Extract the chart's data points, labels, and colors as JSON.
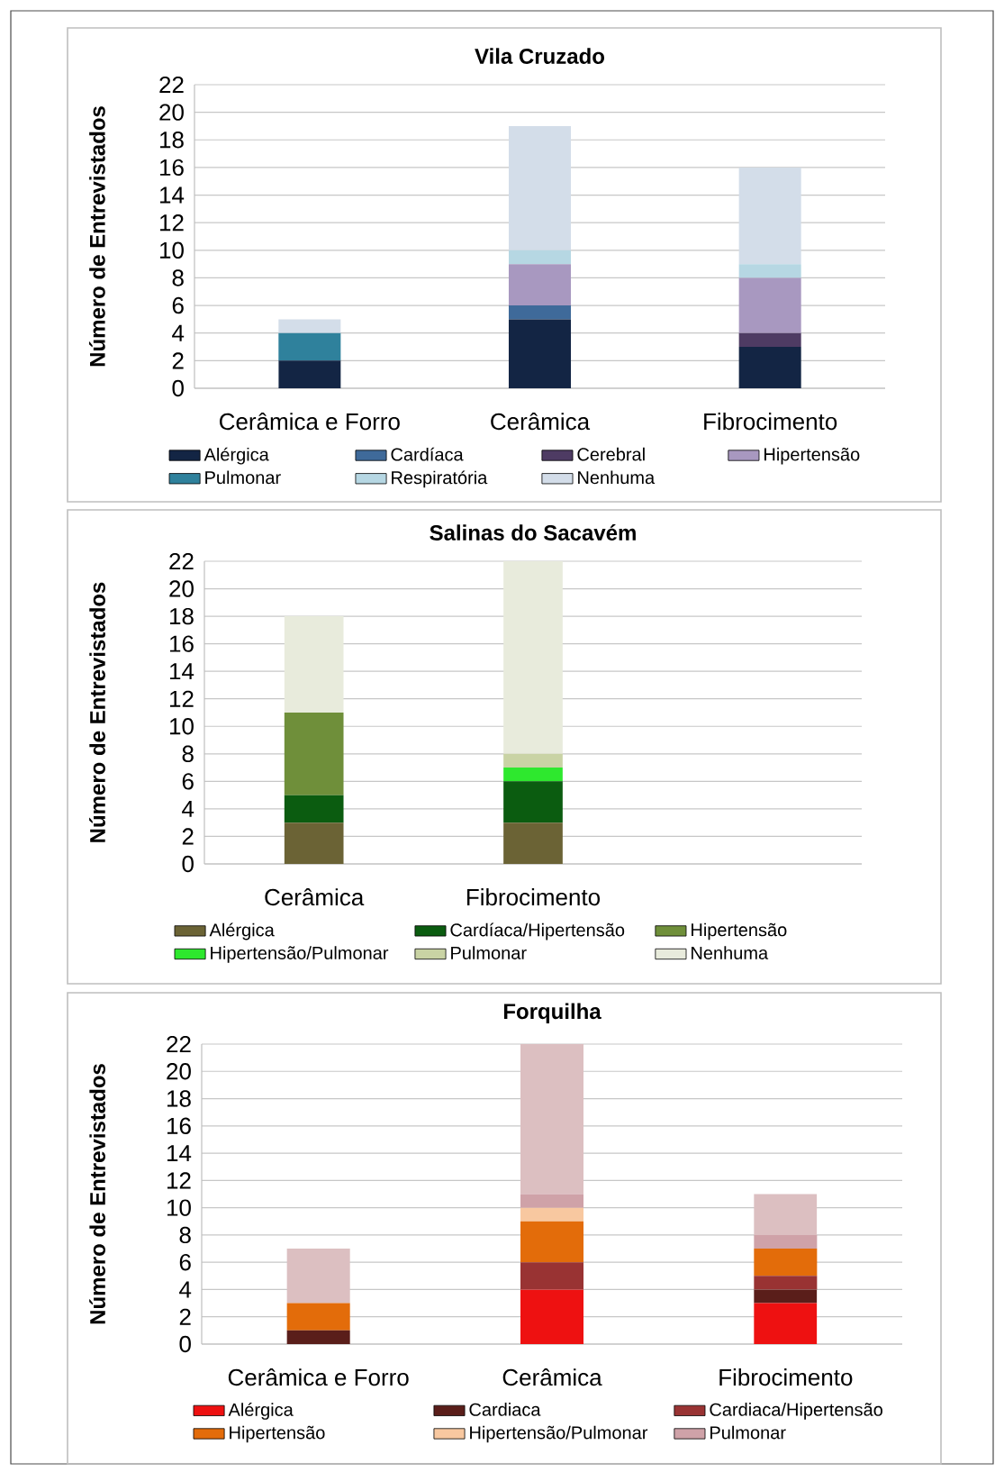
{
  "chart_data": [
    {
      "type": "bar",
      "stacked": true,
      "title": "Vila Cruzado",
      "ylabel": "Número de Entrevistados",
      "categories": [
        "Cerâmica e Forro",
        "Cerâmica",
        "Fibrocimento"
      ],
      "ylim": [
        0,
        22
      ],
      "yticks": [
        0,
        2,
        4,
        6,
        8,
        10,
        12,
        14,
        16,
        18,
        20,
        22
      ],
      "grid": "y",
      "legend": "bottom",
      "series": [
        {
          "name": "Alérgica",
          "color": "#132544",
          "values": [
            2,
            5,
            3
          ]
        },
        {
          "name": "Cardíaca",
          "color": "#3f6a9a",
          "values": [
            0,
            1,
            0
          ]
        },
        {
          "name": "Cerebral",
          "color": "#4e3b63",
          "values": [
            0,
            0,
            1
          ]
        },
        {
          "name": "Hipertensão",
          "color": "#a898c0",
          "values": [
            0,
            3,
            4
          ]
        },
        {
          "name": "Pulmonar",
          "color": "#2f819c",
          "values": [
            2,
            0,
            0
          ]
        },
        {
          "name": "Respiratória",
          "color": "#b6d7e3",
          "values": [
            0,
            1,
            1
          ]
        },
        {
          "name": "Nenhuma",
          "color": "#d3dde9",
          "values": [
            1,
            9,
            7
          ]
        }
      ]
    },
    {
      "type": "bar",
      "stacked": true,
      "title": "Salinas do Sacavém",
      "ylabel": "Número de Entrevistados",
      "categories": [
        "Cerâmica",
        "Fibrocimento",
        null
      ],
      "ylim": [
        0,
        22
      ],
      "yticks": [
        0,
        2,
        4,
        6,
        8,
        10,
        12,
        14,
        16,
        18,
        20,
        22
      ],
      "grid": "y",
      "legend": "bottom",
      "series": [
        {
          "name": "Alérgica",
          "color": "#6b6335",
          "values": [
            3,
            3,
            null
          ]
        },
        {
          "name": "Cardíaca/Hipertensão",
          "color": "#0b5c10",
          "values": [
            2,
            3,
            null
          ]
        },
        {
          "name": "Hipertensão",
          "color": "#6f8f3a",
          "values": [
            6,
            0,
            null
          ]
        },
        {
          "name": "Hipertensão/Pulmonar",
          "color": "#2ee82e",
          "values": [
            0,
            1,
            null
          ]
        },
        {
          "name": "Pulmonar",
          "color": "#c9d3a4",
          "values": [
            0,
            1,
            null
          ]
        },
        {
          "name": "Nenhuma",
          "color": "#e8ebdc",
          "values": [
            7,
            14,
            null
          ]
        }
      ]
    },
    {
      "type": "bar",
      "stacked": true,
      "title": "Forquilha",
      "ylabel": "Número de Entrevistados",
      "categories": [
        "Cerâmica e Forro",
        "Cerâmica",
        "Fibrocimento"
      ],
      "ylim": [
        0,
        22
      ],
      "yticks": [
        0,
        2,
        4,
        6,
        8,
        10,
        12,
        14,
        16,
        18,
        20,
        22
      ],
      "grid": "y",
      "legend": "bottom",
      "series": [
        {
          "name": "Alérgica",
          "color": "#ee1111",
          "values": [
            0,
            4,
            3
          ]
        },
        {
          "name": "Cardiaca",
          "color": "#5a1e1a",
          "values": [
            1,
            0,
            1
          ]
        },
        {
          "name": "Cardiaca/Hipertensão",
          "color": "#993333",
          "values": [
            0,
            2,
            1
          ]
        },
        {
          "name": "Hipertensão",
          "color": "#e36c0a",
          "values": [
            2,
            3,
            2
          ]
        },
        {
          "name": "Hipertensão/Pulmonar",
          "color": "#f8c8a0",
          "values": [
            0,
            1,
            0
          ]
        },
        {
          "name": "Pulmonar",
          "color": "#cfa2a8",
          "values": [
            0,
            1,
            1
          ]
        },
        {
          "color": "#dcbfc1",
          "values": [
            4,
            11,
            3
          ]
        }
      ]
    }
  ]
}
